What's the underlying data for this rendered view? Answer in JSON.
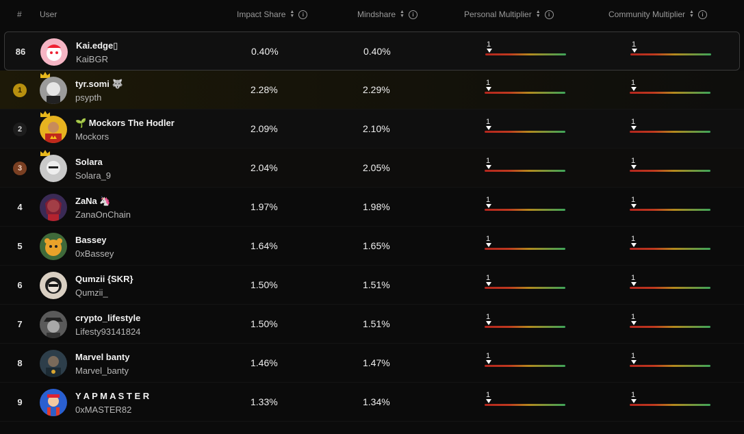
{
  "header": {
    "rank": "#",
    "user": "User",
    "impact_share": "Impact Share",
    "mindshare": "Mindshare",
    "personal_multiplier": "Personal Multiplier",
    "community_multiplier": "Community Multiplier"
  },
  "rows": [
    {
      "rank": "86",
      "name": "Kai.edge▯",
      "handle": "KaiBGR",
      "impact": "0.40%",
      "mind": "0.40%",
      "pm": "1",
      "cm": "1",
      "avatar": "#f5b5c4"
    },
    {
      "rank": "1",
      "name": "tyr.somi 🐺",
      "handle": "psypth",
      "impact": "2.28%",
      "mind": "2.29%",
      "pm": "1",
      "cm": "1",
      "avatar": "#9b9b9b"
    },
    {
      "rank": "2",
      "name": "🌱 Mockors The Hodler",
      "handle": "Mockors",
      "impact": "2.09%",
      "mind": "2.10%",
      "pm": "1",
      "cm": "1",
      "avatar": "#e7b320"
    },
    {
      "rank": "3",
      "name": "Solara",
      "handle": "Solara_9",
      "impact": "2.04%",
      "mind": "2.05%",
      "pm": "1",
      "cm": "1",
      "avatar": "#c9c9c9"
    },
    {
      "rank": "4",
      "name": "ZaNa 🦄",
      "handle": "ZanaOnChain",
      "impact": "1.97%",
      "mind": "1.98%",
      "pm": "1",
      "cm": "1",
      "avatar": "#3a2a55"
    },
    {
      "rank": "5",
      "name": "Bassey",
      "handle": "0xBassey",
      "impact": "1.64%",
      "mind": "1.65%",
      "pm": "1",
      "cm": "1",
      "avatar": "#3f6a3a"
    },
    {
      "rank": "6",
      "name": "Qumzii {SKR}",
      "handle": "Qumzii_",
      "impact": "1.50%",
      "mind": "1.51%",
      "pm": "1",
      "cm": "1",
      "avatar": "#d9cfc2"
    },
    {
      "rank": "7",
      "name": "crypto_lifestyle",
      "handle": "Lifesty93141824",
      "impact": "1.50%",
      "mind": "1.51%",
      "pm": "1",
      "cm": "1",
      "avatar": "#5a5a5a"
    },
    {
      "rank": "8",
      "name": "Marvel banty",
      "handle": "Marvel_banty",
      "impact": "1.46%",
      "mind": "1.47%",
      "pm": "1",
      "cm": "1",
      "avatar": "#2d3e4a"
    },
    {
      "rank": "9",
      "name": "Y A P M A S T E R",
      "handle": "0xMASTER82",
      "impact": "1.33%",
      "mind": "1.34%",
      "pm": "1",
      "cm": "1",
      "avatar": "#2a5fd0"
    }
  ],
  "colors": {
    "background": "#0b0b0b",
    "gold": "#b8900f",
    "bronze": "#7a3f22",
    "bar_red": "#b3261e",
    "bar_green": "#3ea55a"
  }
}
